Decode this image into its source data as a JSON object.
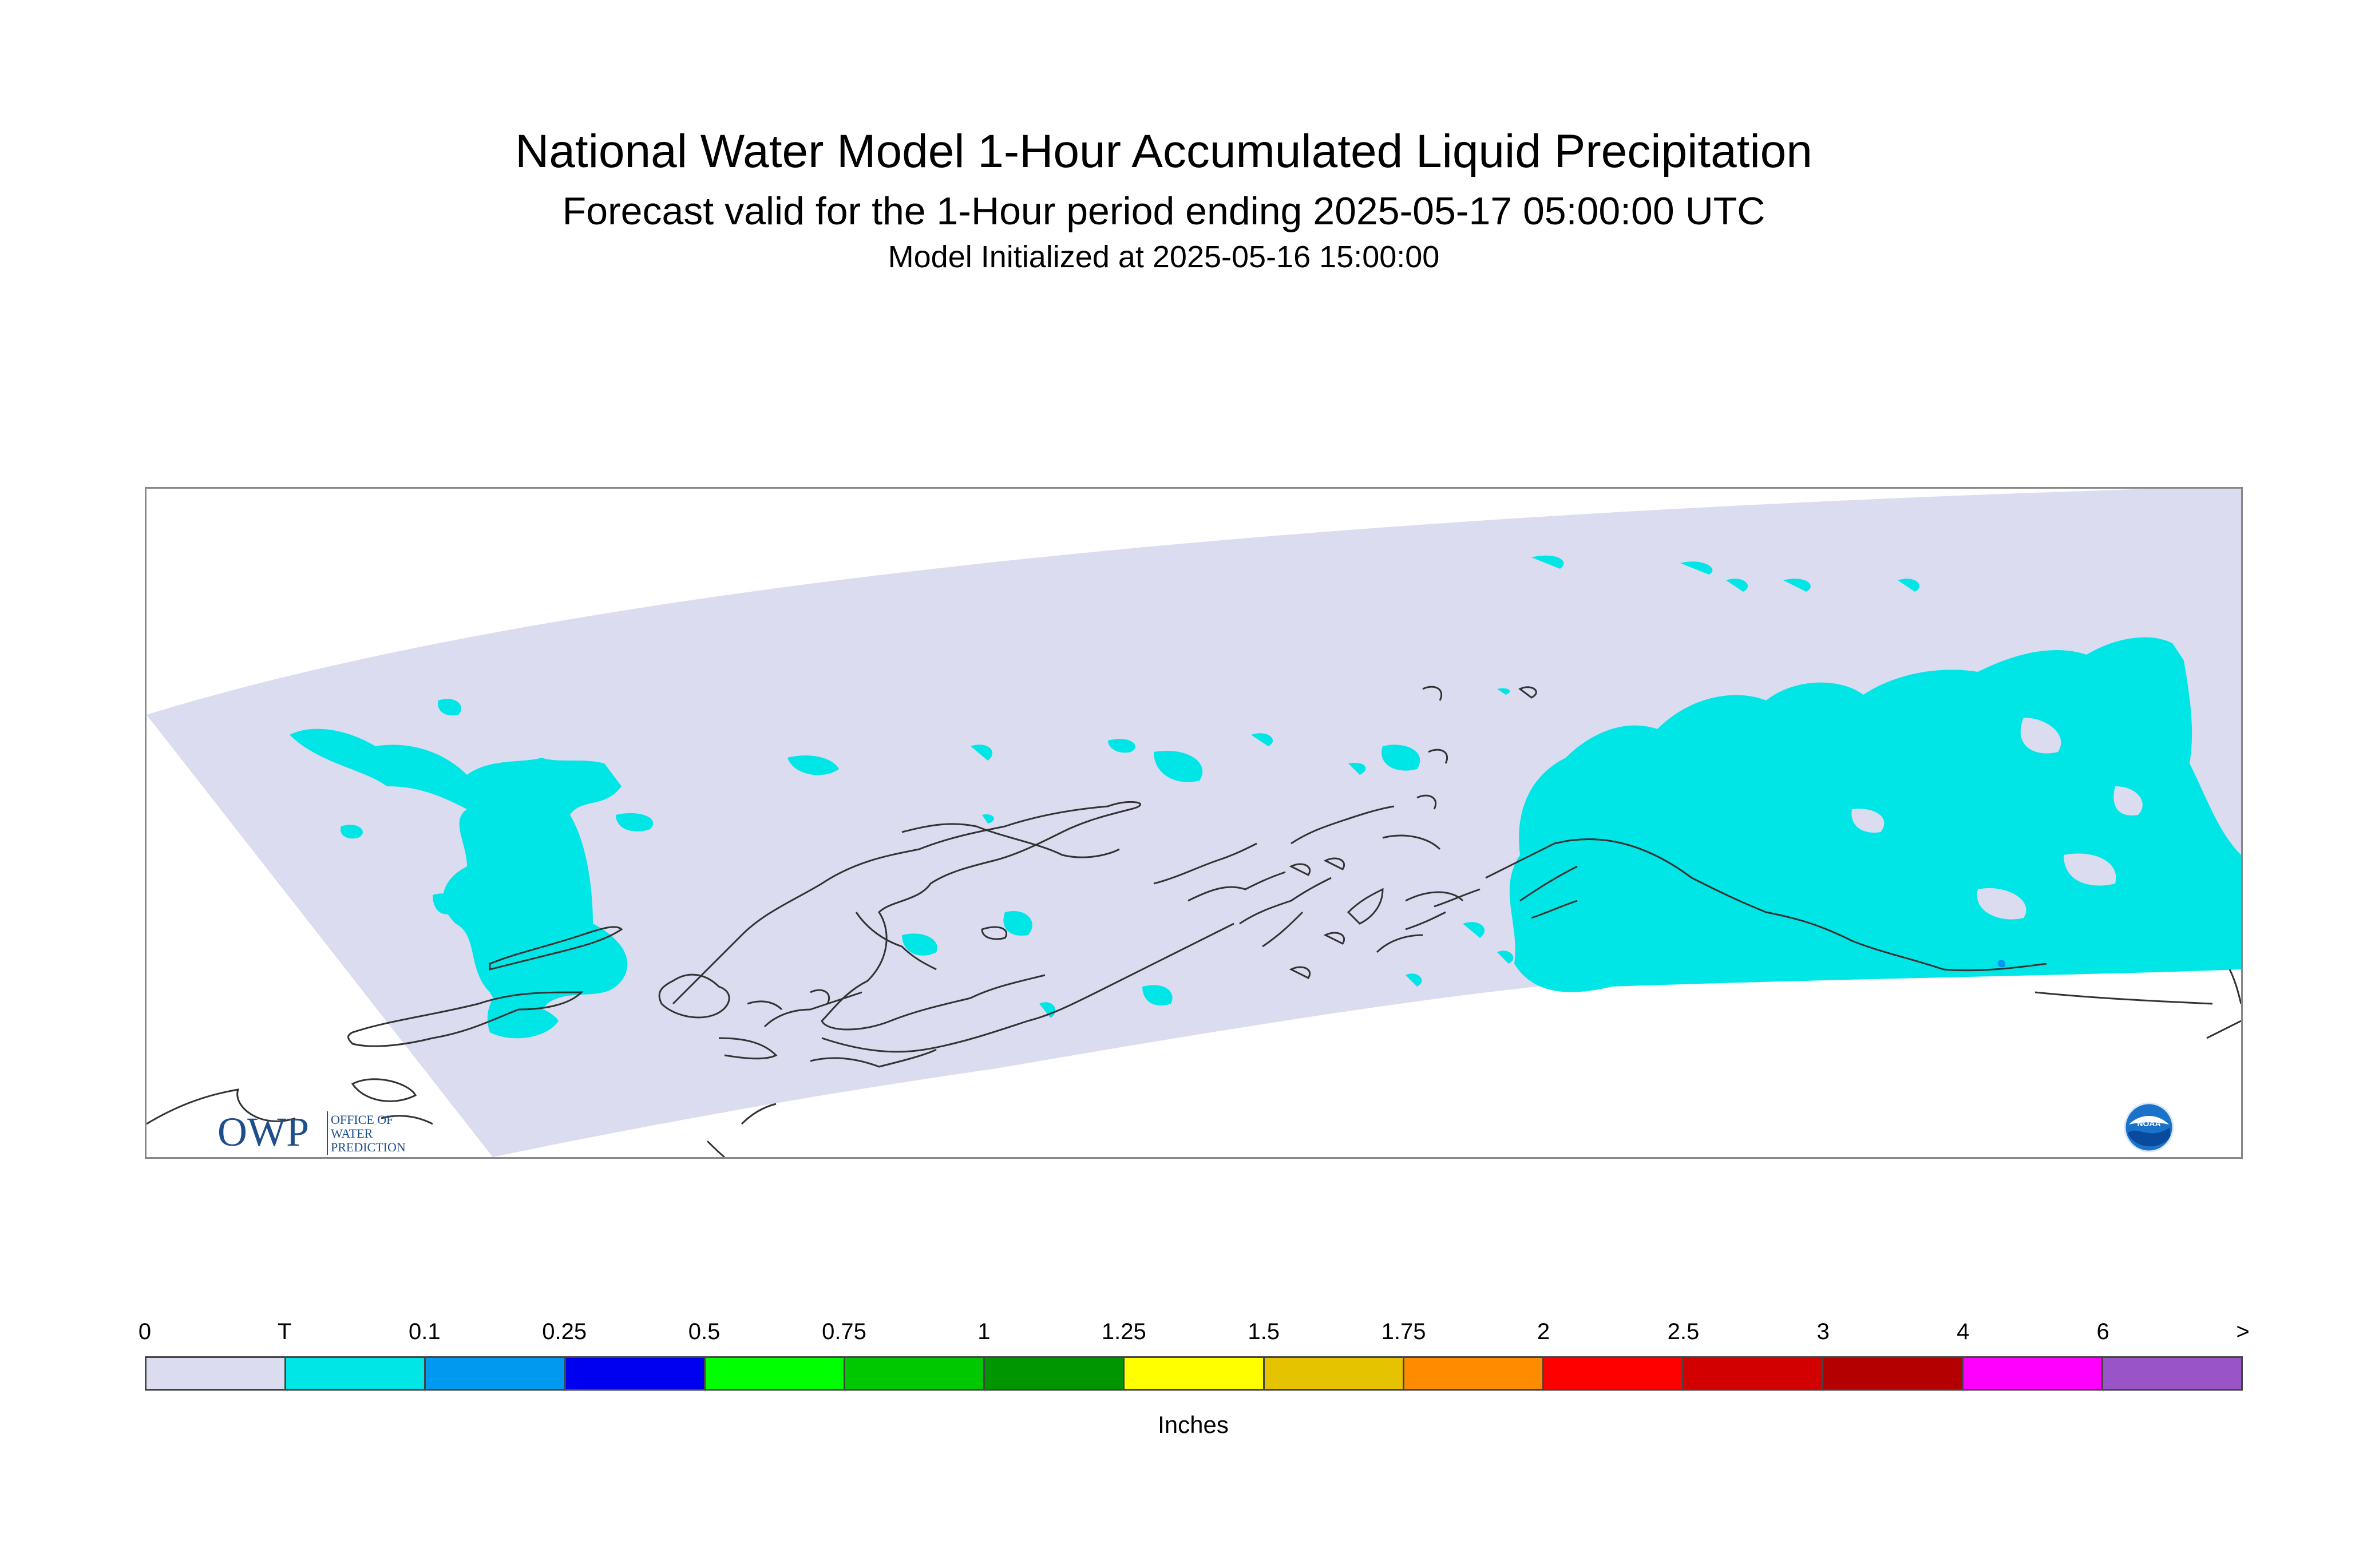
{
  "title": "National Water Model 1-Hour Accumulated Liquid Precipitation",
  "subtitle": "Forecast valid for the 1-Hour period ending 2025-05-17 05:00:00 UTC",
  "init": "Model Initialized at 2025-05-16 15:00:00",
  "legend": {
    "units": "Inches",
    "ticks": [
      "0",
      "T",
      "0.1",
      "0.25",
      "0.5",
      "0.75",
      "1",
      "1.25",
      "1.5",
      "1.75",
      "2",
      "2.5",
      "3",
      "4",
      "6",
      ">"
    ],
    "colors": [
      "#dcdcf0",
      "#00e6e6",
      "#0099f0",
      "#0000f0",
      "#00ff00",
      "#00c800",
      "#009600",
      "#ffff00",
      "#e6c300",
      "#ff8c00",
      "#ff0000",
      "#d20000",
      "#b40000",
      "#ff00ff",
      "#9955c8"
    ]
  },
  "logos": {
    "owp_mark": "OWP",
    "owp_text": [
      "OFFICE OF",
      "WATER",
      "PREDICTION"
    ],
    "noaa_text": "NOAA"
  },
  "map": {
    "domain_color": "#dcdcf0",
    "precip_color": "#00e6e6",
    "coast_color": "#333333"
  }
}
